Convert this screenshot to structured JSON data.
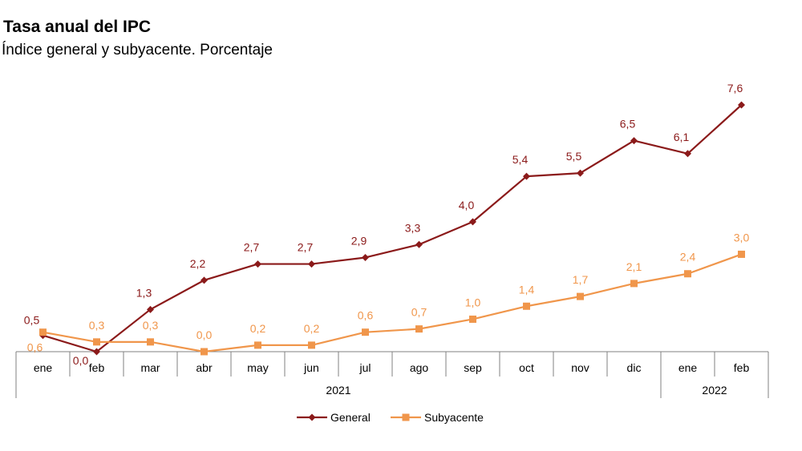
{
  "chart_data": {
    "type": "line",
    "title": "Tasa anual del IPC",
    "subtitle": "Índice general y subyacente. Porcentaje",
    "categories": [
      "ene",
      "feb",
      "mar",
      "abr",
      "may",
      "jun",
      "jul",
      "ago",
      "sep",
      "oct",
      "nov",
      "dic",
      "ene",
      "feb"
    ],
    "year_groups": [
      {
        "label": "2021",
        "from": 0,
        "to": 11
      },
      {
        "label": "2022",
        "from": 12,
        "to": 13
      }
    ],
    "series": [
      {
        "name": "General",
        "color": "#8B1A1A",
        "marker": "diamond",
        "values": [
          0.5,
          0.0,
          1.3,
          2.2,
          2.7,
          2.7,
          2.9,
          3.3,
          4.0,
          5.4,
          5.5,
          6.5,
          6.1,
          7.6
        ],
        "labels": [
          "0,5",
          "0,0",
          "1,3",
          "2,2",
          "2,7",
          "2,7",
          "2,9",
          "3,3",
          "4,0",
          "5,4",
          "5,5",
          "6,5",
          "6,1",
          "7,6"
        ]
      },
      {
        "name": "Subyacente",
        "color": "#F0964B",
        "marker": "square",
        "values": [
          0.6,
          0.3,
          0.3,
          0.0,
          0.2,
          0.2,
          0.6,
          0.7,
          1.0,
          1.4,
          1.7,
          2.1,
          2.4,
          3.0
        ],
        "labels": [
          "0,6",
          "0,3",
          "0,3",
          "0,0",
          "0,2",
          "0,2",
          "0,6",
          "0,7",
          "1,0",
          "1,4",
          "1,7",
          "2,1",
          "2,4",
          "3,0"
        ]
      }
    ],
    "ylim": [
      0,
      8
    ],
    "grid": false,
    "legend_position": "bottom-center"
  }
}
